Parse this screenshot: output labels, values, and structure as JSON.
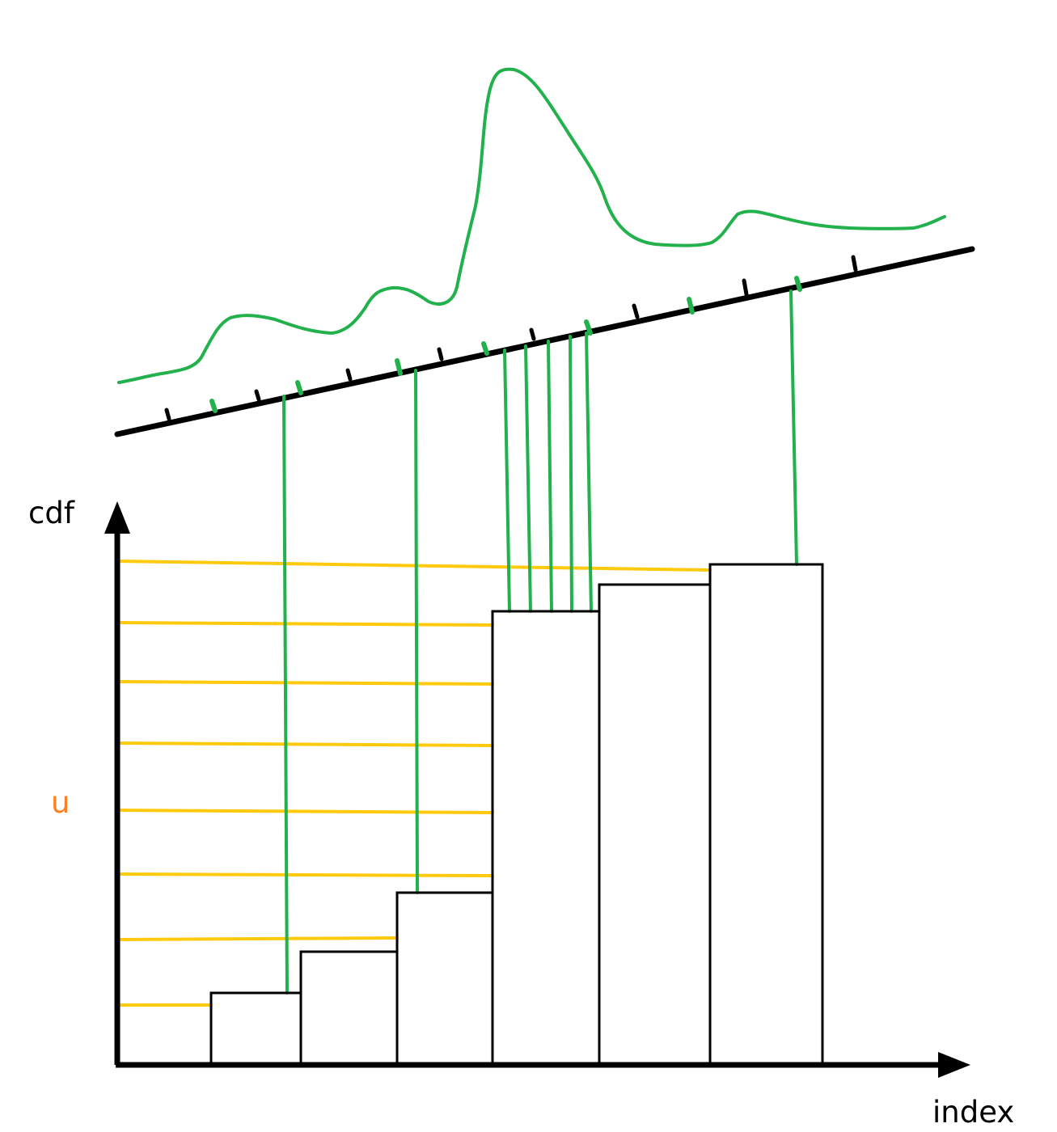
{
  "labels": {
    "y_axis": "cdf",
    "x_axis": "index",
    "u": "u"
  },
  "colors": {
    "background": "#ffffff",
    "axis": "#000000",
    "bars": "#000000",
    "density_curve": "#22b14c",
    "sample_lines": "#22b14c",
    "threshold_lines": "#ffc90e",
    "u_label": "#ff7f27"
  },
  "content": {
    "cdf_steps": [
      0.13,
      0.24,
      0.39,
      0.79,
      0.91,
      1.0
    ],
    "selected_indices": [
      1,
      3,
      4,
      4,
      4,
      4,
      4,
      6
    ],
    "u_levels": 8
  }
}
